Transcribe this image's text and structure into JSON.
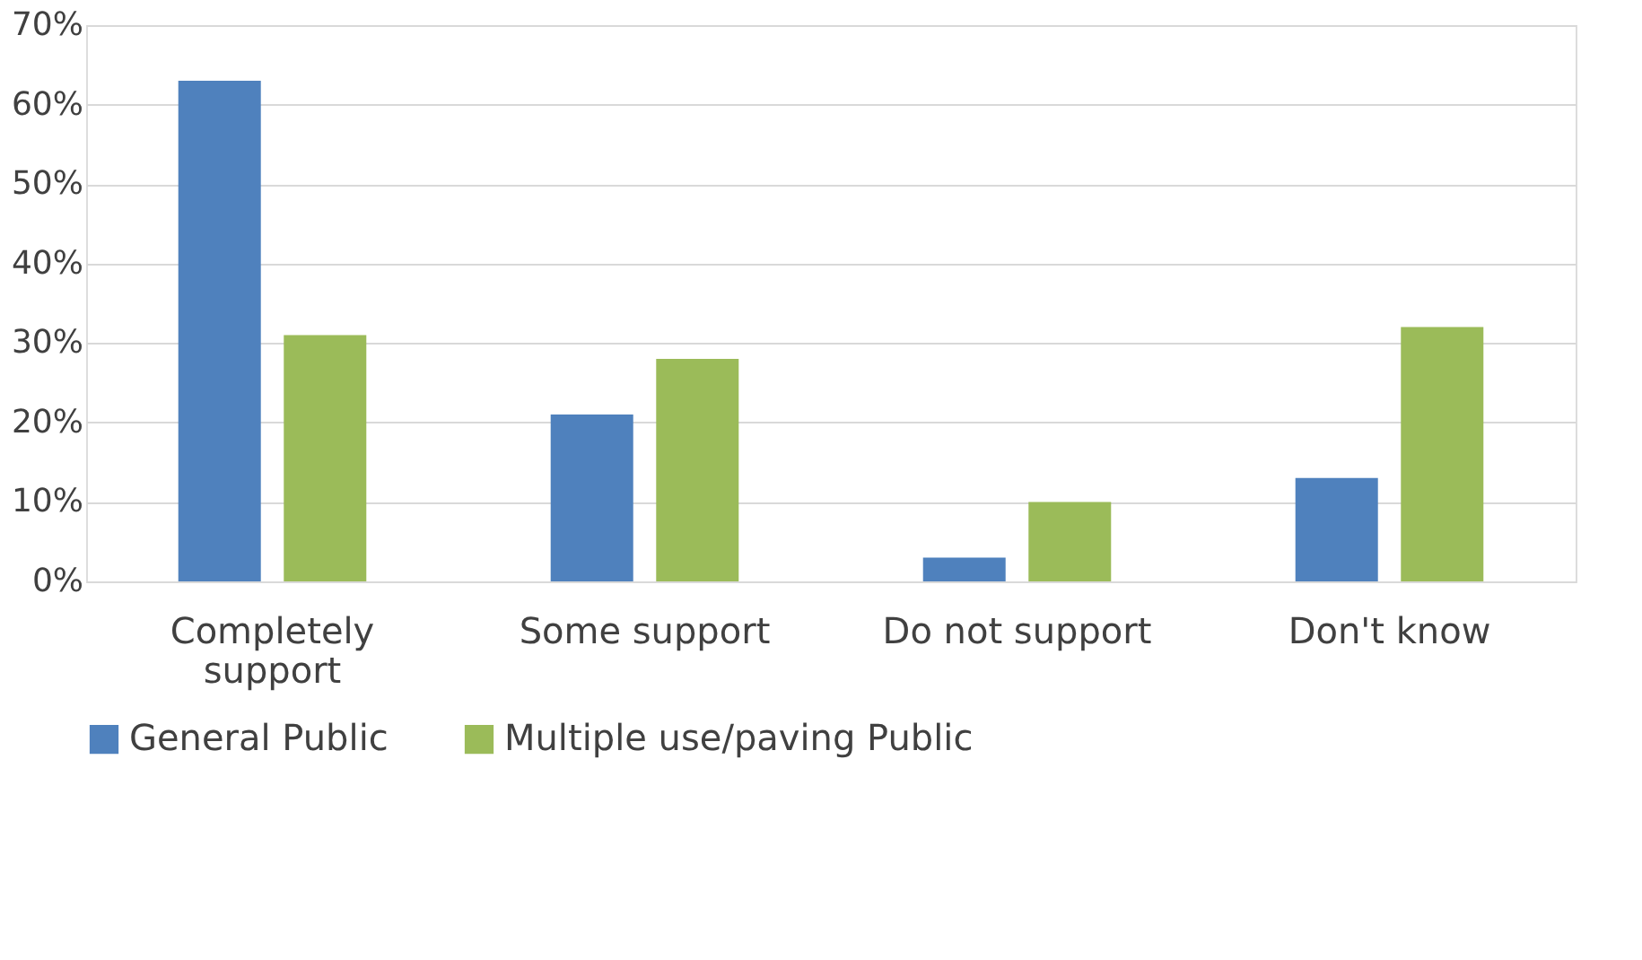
{
  "chart_data": {
    "type": "bar",
    "categories": [
      "Completely support",
      "Some support",
      "Do not support",
      "Don't know"
    ],
    "series": [
      {
        "name": "General Public",
        "color": "#4f81bd",
        "values": [
          63,
          21,
          3,
          13
        ]
      },
      {
        "name": "Multiple use/paving Public",
        "color": "#9bbb59",
        "values": [
          31,
          28,
          10,
          32
        ]
      }
    ],
    "ylim": [
      0,
      70
    ],
    "yticks": [
      {
        "value": 0,
        "label": "0%"
      },
      {
        "value": 10,
        "label": "10%"
      },
      {
        "value": 20,
        "label": "20%"
      },
      {
        "value": 30,
        "label": "30%"
      },
      {
        "value": 40,
        "label": "40%"
      },
      {
        "value": 50,
        "label": "50%"
      },
      {
        "value": 60,
        "label": "60%"
      },
      {
        "value": 70,
        "label": "70%"
      }
    ],
    "grid": "y",
    "legend": "bottom"
  }
}
